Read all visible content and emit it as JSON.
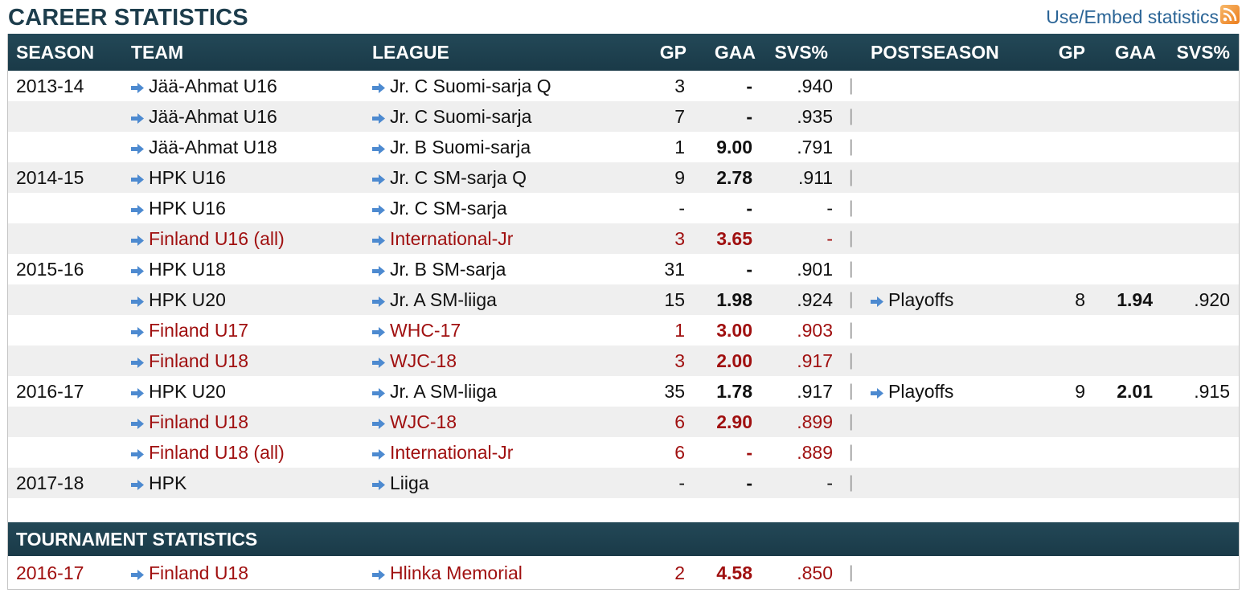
{
  "page_title": "CAREER STATISTICS",
  "embed_link": "Use/Embed statistics",
  "colors": {
    "header_bg": "#1d3e4d",
    "alt_row": "#efefef",
    "international_text": "#a01010",
    "link": "#2a6496",
    "arrow": "#4d8ad0"
  },
  "headers": {
    "season": "SEASON",
    "team": "TEAM",
    "league": "LEAGUE",
    "gp": "GP",
    "gaa": "GAA",
    "svs": "SVS%",
    "postseason": "POSTSEASON",
    "post_gp": "GP",
    "post_gaa": "GAA",
    "post_svs": "SVS%"
  },
  "rows": [
    {
      "season": "2013-14",
      "team": "Jää-Ahmat U16",
      "league": "Jr. C Suomi-sarja Q",
      "gp": "3",
      "gaa": "-",
      "svs": ".940",
      "sep": "|",
      "post": "",
      "post_gp": "",
      "post_gaa": "",
      "post_svs": ""
    },
    {
      "season": "",
      "team": "Jää-Ahmat U16",
      "league": "Jr. C Suomi-sarja",
      "gp": "7",
      "gaa": "-",
      "svs": ".935",
      "sep": "|",
      "post": "",
      "post_gp": "",
      "post_gaa": "",
      "post_svs": ""
    },
    {
      "season": "",
      "team": "Jää-Ahmat U18",
      "league": "Jr. B Suomi-sarja",
      "gp": "1",
      "gaa": "9.00",
      "svs": ".791",
      "sep": "|",
      "post": "",
      "post_gp": "",
      "post_gaa": "",
      "post_svs": ""
    },
    {
      "season": "2014-15",
      "team": "HPK U16",
      "league": "Jr. C SM-sarja Q",
      "gp": "9",
      "gaa": "2.78",
      "svs": ".911",
      "sep": "|",
      "post": "",
      "post_gp": "",
      "post_gaa": "",
      "post_svs": ""
    },
    {
      "season": "",
      "team": "HPK U16",
      "league": "Jr. C SM-sarja",
      "gp": "-",
      "gaa": "-",
      "svs": "-",
      "sep": "|",
      "post": "",
      "post_gp": "",
      "post_gaa": "",
      "post_svs": ""
    },
    {
      "season": "",
      "team": "Finland U16 (all)",
      "league": "International-Jr",
      "gp": "3",
      "gaa": "3.65",
      "svs": "-",
      "sep": "|",
      "post": "",
      "post_gp": "",
      "post_gaa": "",
      "post_svs": ""
    },
    {
      "season": "2015-16",
      "team": "HPK U18",
      "league": "Jr. B SM-sarja",
      "gp": "31",
      "gaa": "-",
      "svs": ".901",
      "sep": "|",
      "post": "",
      "post_gp": "",
      "post_gaa": "",
      "post_svs": ""
    },
    {
      "season": "",
      "team": "HPK U20",
      "league": "Jr. A SM-liiga",
      "gp": "15",
      "gaa": "1.98",
      "svs": ".924",
      "sep": "|",
      "post": "Playoffs",
      "post_gp": "8",
      "post_gaa": "1.94",
      "post_svs": ".920"
    },
    {
      "season": "",
      "team": "Finland U17",
      "league": "WHC-17",
      "gp": "1",
      "gaa": "3.00",
      "svs": ".903",
      "sep": "|",
      "post": "",
      "post_gp": "",
      "post_gaa": "",
      "post_svs": ""
    },
    {
      "season": "",
      "team": "Finland U18",
      "league": "WJC-18",
      "gp": "3",
      "gaa": "2.00",
      "svs": ".917",
      "sep": "|",
      "post": "",
      "post_gp": "",
      "post_gaa": "",
      "post_svs": ""
    },
    {
      "season": "2016-17",
      "team": "HPK U20",
      "league": "Jr. A SM-liiga",
      "gp": "35",
      "gaa": "1.78",
      "svs": ".917",
      "sep": "|",
      "post": "Playoffs",
      "post_gp": "9",
      "post_gaa": "2.01",
      "post_svs": ".915"
    },
    {
      "season": "",
      "team": "Finland U18",
      "league": "WJC-18",
      "gp": "6",
      "gaa": "2.90",
      "svs": ".899",
      "sep": "|",
      "post": "",
      "post_gp": "",
      "post_gaa": "",
      "post_svs": ""
    },
    {
      "season": "",
      "team": "Finland U18 (all)",
      "league": "International-Jr",
      "gp": "6",
      "gaa": "-",
      "svs": ".889",
      "sep": "|",
      "post": "",
      "post_gp": "",
      "post_gaa": "",
      "post_svs": ""
    },
    {
      "season": "2017-18",
      "team": "HPK",
      "league": "Liiga",
      "gp": "-",
      "gaa": "-",
      "svs": "-",
      "sep": "|",
      "post": "",
      "post_gp": "",
      "post_gaa": "",
      "post_svs": ""
    }
  ],
  "tournament": {
    "title": "TOURNAMENT STATISTICS",
    "rows": [
      {
        "season": "2016-17",
        "team": "Finland U18",
        "league": "Hlinka Memorial",
        "gp": "2",
        "gaa": "4.58",
        "svs": ".850",
        "sep": "|"
      }
    ]
  }
}
